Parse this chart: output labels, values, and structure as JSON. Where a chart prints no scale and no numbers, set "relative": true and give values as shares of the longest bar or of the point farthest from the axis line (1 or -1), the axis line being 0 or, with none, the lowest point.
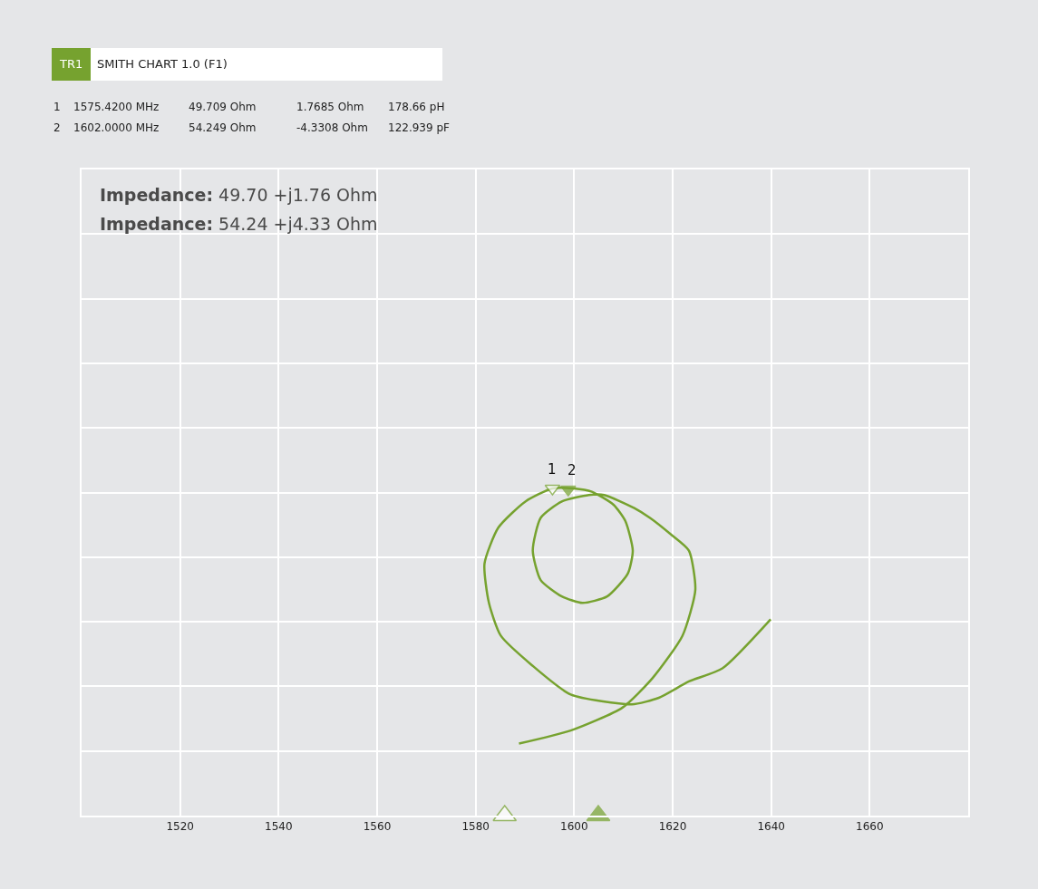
{
  "chart_data": {
    "type": "line",
    "title": "SMITH CHART 1.0 (F1)",
    "relative": true,
    "xlim": [
      1500,
      1680
    ],
    "xticks": [
      1520,
      1540,
      1560,
      1580,
      1600,
      1620,
      1640,
      1660
    ],
    "grid": true,
    "annotations": [
      "TR1",
      "1",
      "1575.4200 MHz",
      "49.709 Ohm",
      "1.7685 Ohm",
      "178.66 pH",
      "2",
      "1602.0000 MHz",
      "54.249 Ohm",
      "-4.3308 Ohm",
      "122.939 pF",
      "Impedance: 49.70 +j1.76 Ohm",
      "Impedance: 54.24 +j4.33 Ohm",
      "1",
      "2"
    ],
    "series": [
      {
        "color": "#76a22f",
        "marker": "none",
        "line_style": "solid",
        "x": [
          1588.8,
          1599.3,
          1609.8,
          1615.9,
          1622.0,
          1624.6,
          1623.3,
          1619.6,
          1615.4,
          1612.2,
          1606.1,
          1603.0,
          1597.5,
          1593.2,
          1591.6,
          1593.2,
          1597.5,
          1601.7,
          1606.7,
          1610.9,
          1611.9,
          1610.4,
          1608.0,
          1603.6,
          1599.9,
          1595.6,
          1590.1,
          1584.6,
          1581.8,
          1582.7,
          1585.1,
          1591.4,
          1599.3,
          1611.7,
          1617.2,
          1623.3,
          1630.1,
          1639.9
        ],
        "values": [
          0.22,
          0.26,
          0.33,
          0.42,
          0.55,
          0.69,
          0.81,
          0.86,
          0.91,
          0.94,
          0.98,
          0.98,
          0.96,
          0.91,
          0.81,
          0.72,
          0.67,
          0.65,
          0.67,
          0.74,
          0.81,
          0.9,
          0.95,
          0.99,
          1.0,
          1.0,
          0.96,
          0.88,
          0.77,
          0.65,
          0.55,
          0.46,
          0.37,
          0.34,
          0.36,
          0.41,
          0.45,
          0.6
        ]
      },
      {
        "type": "scatter",
        "marker": "triangle",
        "color": "#76a22f",
        "colors": [
          "#ffffff",
          "#76a22f"
        ],
        "x": [
          1595.6,
          1598.8
        ],
        "values": [
          1.0,
          0.997
        ]
      },
      {
        "type": "scatter",
        "marker": "triangle",
        "color": "#76a22f",
        "colors": [
          "#ffffff",
          "#76a22f"
        ],
        "x": [
          1585.9,
          1604.9
        ],
        "values": [
          0,
          0
        ]
      }
    ]
  }
}
